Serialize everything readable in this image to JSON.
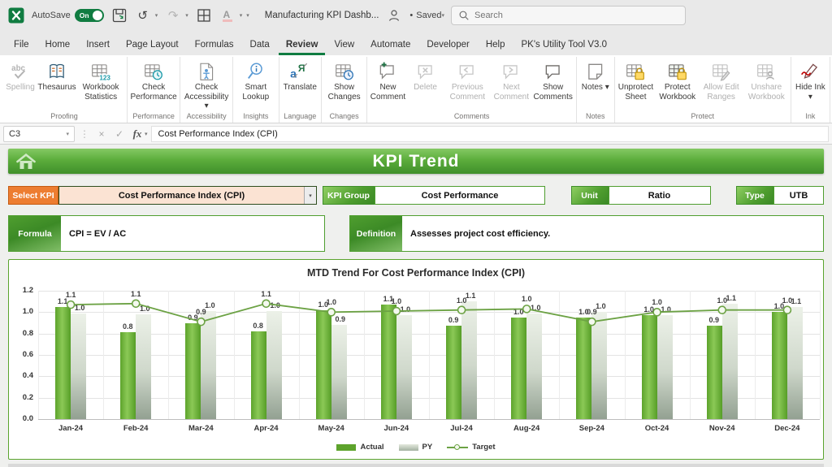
{
  "titlebar": {
    "autosave_label": "AutoSave",
    "autosave_state": "On",
    "doc_title": "Manufacturing KPI Dashb...",
    "saved_status": "Saved",
    "search_placeholder": "Search"
  },
  "glyphs": {
    "dropdown": "▾",
    "overflow": "⋮",
    "cancel": "×",
    "check": "✓",
    "undo": "↺",
    "redo": "↷",
    "bullet": "•",
    "fx": "fx"
  },
  "menu": {
    "active": "Review",
    "items": [
      "File",
      "Home",
      "Insert",
      "Page Layout",
      "Formulas",
      "Data",
      "Review",
      "View",
      "Automate",
      "Developer",
      "Help",
      "PK's Utility Tool V3.0"
    ]
  },
  "ribbon": {
    "groups": [
      {
        "label": "Proofing",
        "items": [
          {
            "label": "Spelling",
            "icon": "spelling-icon",
            "disabled": true
          },
          {
            "label": "Thesaurus",
            "icon": "thesaurus-icon"
          },
          {
            "label": "Workbook Statistics",
            "icon": "workbook-statistics-icon"
          }
        ]
      },
      {
        "label": "Performance",
        "items": [
          {
            "label": "Check Performance",
            "icon": "check-performance-icon"
          }
        ]
      },
      {
        "label": "Accessibility",
        "items": [
          {
            "label": "Check Accessibility",
            "icon": "check-accessibility-icon",
            "dropdown": true
          }
        ]
      },
      {
        "label": "Insights",
        "items": [
          {
            "label": "Smart Lookup",
            "icon": "smart-lookup-icon"
          }
        ]
      },
      {
        "label": "Language",
        "items": [
          {
            "label": "Translate",
            "icon": "translate-icon"
          }
        ]
      },
      {
        "label": "Changes",
        "items": [
          {
            "label": "Show Changes",
            "icon": "show-changes-icon"
          }
        ]
      },
      {
        "label": "Comments",
        "items": [
          {
            "label": "New Comment",
            "icon": "new-comment-icon"
          },
          {
            "label": "Delete",
            "icon": "delete-comment-icon",
            "disabled": true
          },
          {
            "label": "Previous Comment",
            "icon": "previous-comment-icon",
            "disabled": true
          },
          {
            "label": "Next Comment",
            "icon": "next-comment-icon",
            "disabled": true
          },
          {
            "label": "Show Comments",
            "icon": "show-comments-icon"
          }
        ]
      },
      {
        "label": "Notes",
        "items": [
          {
            "label": "Notes",
            "icon": "notes-icon",
            "dropdown": true
          }
        ]
      },
      {
        "label": "Protect",
        "items": [
          {
            "label": "Unprotect Sheet",
            "icon": "unprotect-sheet-icon"
          },
          {
            "label": "Protect Workbook",
            "icon": "protect-workbook-icon"
          },
          {
            "label": "Allow Edit Ranges",
            "icon": "allow-edit-ranges-icon",
            "disabled": true
          },
          {
            "label": "Unshare Workbook",
            "icon": "unshare-workbook-icon",
            "disabled": true
          }
        ]
      },
      {
        "label": "Ink",
        "items": [
          {
            "label": "Hide Ink",
            "icon": "hide-ink-icon",
            "dropdown": true
          }
        ]
      }
    ]
  },
  "formula_bar": {
    "cell_reference": "C3",
    "value": "Cost Performance Index (CPI)"
  },
  "banner": {
    "title": "KPI Trend"
  },
  "selectors": {
    "select_kpi_label": "Select KPI",
    "select_kpi_value": "Cost Performance Index (CPI)",
    "kpi_group_label": "KPI Group",
    "kpi_group_value": "Cost Performance",
    "unit_label": "Unit",
    "unit_value": "Ratio",
    "type_label": "Type",
    "type_value": "UTB"
  },
  "formula_panel": {
    "label": "Formula",
    "value": "CPI = EV / AC"
  },
  "definition_panel": {
    "label": "Definition",
    "value": "Assesses project cost efficiency."
  },
  "colors": {
    "excel_green": "#107c41",
    "banner_green": "#57a93a",
    "select_orange": "#ed7d31",
    "bar_actual": "#5da32c",
    "bar_py_top": "#ecf1e8",
    "bar_py_bottom": "#93a192",
    "target_line": "#6ca244",
    "chart_border": "#5aa42e"
  },
  "chart_data": {
    "type": "bar",
    "title": "MTD Trend For Cost Performance Index (CPI)",
    "categories": [
      "Jan-24",
      "Feb-24",
      "Mar-24",
      "Apr-24",
      "May-24",
      "Jun-24",
      "Jul-24",
      "Aug-24",
      "Sep-24",
      "Oct-24",
      "Nov-24",
      "Dec-24"
    ],
    "series": [
      {
        "name": "Actual",
        "type": "bar",
        "values": [
          1.1,
          0.8,
          0.9,
          0.8,
          1.0,
          1.1,
          0.9,
          1.0,
          1.0,
          1.0,
          0.9,
          1.0
        ],
        "plot_values": [
          1.05,
          0.81,
          0.9,
          0.82,
          1.02,
          1.07,
          0.87,
          0.95,
          0.95,
          0.97,
          0.87,
          1.0
        ]
      },
      {
        "name": "PY",
        "type": "bar",
        "values": [
          1.0,
          1.0,
          1.0,
          1.0,
          0.9,
          1.0,
          1.1,
          1.0,
          1.0,
          1.0,
          1.1,
          1.1
        ],
        "plot_values": [
          0.99,
          0.98,
          1.01,
          1.01,
          0.88,
          0.97,
          1.1,
          0.99,
          1.0,
          0.97,
          1.08,
          1.05
        ]
      },
      {
        "name": "Target",
        "type": "line",
        "values": [
          1.1,
          1.1,
          0.9,
          1.1,
          1.0,
          1.0,
          1.0,
          1.0,
          0.9,
          1.0,
          1.0,
          1.0
        ],
        "plot_values": [
          1.07,
          1.08,
          0.91,
          1.08,
          1.0,
          1.01,
          1.02,
          1.03,
          0.91,
          1.0,
          1.02,
          1.02
        ]
      }
    ],
    "ylim": [
      0,
      1.2
    ],
    "yticks": [
      0.0,
      0.2,
      0.4,
      0.6,
      0.8,
      1.0,
      1.2
    ],
    "grid": true,
    "legend_position": "bottom",
    "legend": [
      "Actual",
      "PY",
      "Target"
    ]
  }
}
